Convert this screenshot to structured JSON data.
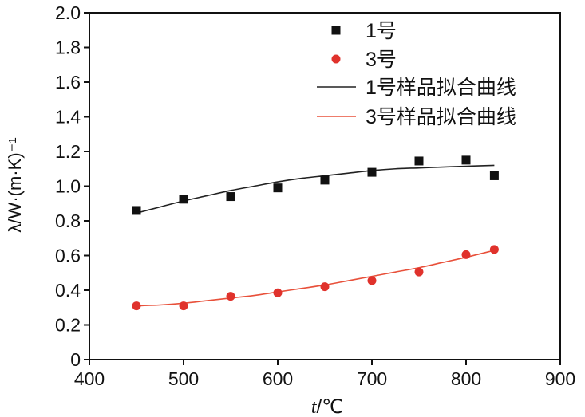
{
  "chart_data": {
    "type": "scatter",
    "xlabel": "t/℃",
    "xlabel_italic": "t",
    "xlabel_rest": "/℃",
    "ylabel": "λ/W·(m·K)⁻¹",
    "xlim": [
      400,
      900
    ],
    "ylim": [
      0,
      2.0
    ],
    "xticks": [
      "400",
      "500",
      "600",
      "700",
      "800",
      "900"
    ],
    "yticks": [
      "0",
      "0.2",
      "0.4",
      "0.6",
      "0.8",
      "1.0",
      "1.2",
      "1.4",
      "1.6",
      "1.8",
      "2.0"
    ],
    "legend_position": "top-right",
    "series": [
      {
        "name": "1号",
        "marker": "square",
        "color": "#111111",
        "x": [
          450,
          500,
          550,
          600,
          650,
          700,
          750,
          800,
          830
        ],
        "y": [
          0.86,
          0.925,
          0.94,
          0.99,
          1.035,
          1.08,
          1.145,
          1.15,
          1.06
        ]
      },
      {
        "name": "3号",
        "marker": "circle",
        "color": "#e0322c",
        "x": [
          450,
          500,
          550,
          600,
          650,
          700,
          750,
          800,
          830
        ],
        "y": [
          0.31,
          0.31,
          0.365,
          0.385,
          0.42,
          0.455,
          0.505,
          0.605,
          0.635
        ]
      }
    ],
    "fits": [
      {
        "name": "1号样品拟合曲线",
        "color": "#222222",
        "x": [
          450,
          475,
          500,
          525,
          550,
          575,
          600,
          625,
          650,
          675,
          700,
          725,
          750,
          775,
          800,
          830
        ],
        "y": [
          0.845,
          0.88,
          0.915,
          0.945,
          0.975,
          1.0,
          1.025,
          1.045,
          1.06,
          1.075,
          1.09,
          1.1,
          1.105,
          1.11,
          1.115,
          1.12
        ]
      },
      {
        "name": "3号样品拟合曲线",
        "color": "#e8503a",
        "x": [
          450,
          475,
          500,
          525,
          550,
          575,
          600,
          625,
          650,
          675,
          700,
          725,
          750,
          775,
          800,
          830
        ],
        "y": [
          0.31,
          0.315,
          0.325,
          0.34,
          0.355,
          0.37,
          0.39,
          0.41,
          0.43,
          0.455,
          0.48,
          0.505,
          0.53,
          0.56,
          0.59,
          0.63
        ]
      }
    ]
  }
}
